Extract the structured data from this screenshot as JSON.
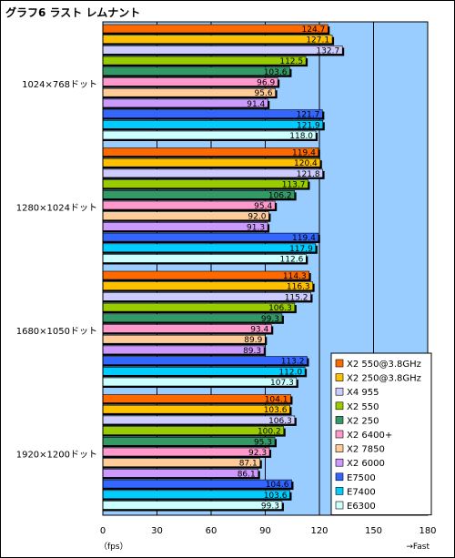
{
  "chart_data": {
    "type": "bar",
    "orientation": "horizontal",
    "title": "グラフ6 ラスト レムナント",
    "categories": [
      "1024×768ドット",
      "1280×1024ドット",
      "1680×1050ドット",
      "1920×1200ドット"
    ],
    "series": [
      {
        "name": "X2 550@3.8GHz",
        "color": "#ff6a00",
        "values": [
          124.7,
          119.4,
          114.3,
          104.1
        ]
      },
      {
        "name": "X2 250@3.8GHz",
        "color": "#ffc000",
        "values": [
          127.1,
          120.4,
          116.3,
          103.6
        ]
      },
      {
        "name": "X4 955",
        "color": "#ccccff",
        "values": [
          132.7,
          121.8,
          115.2,
          106.3
        ]
      },
      {
        "name": "X2 550",
        "color": "#99cc00",
        "values": [
          112.5,
          113.7,
          106.3,
          100.2
        ]
      },
      {
        "name": "X2 250",
        "color": "#339966",
        "values": [
          103.6,
          106.2,
          99.3,
          95.3
        ]
      },
      {
        "name": "X2 6400+",
        "color": "#ff99cc",
        "values": [
          96.9,
          95.4,
          93.4,
          92.3
        ]
      },
      {
        "name": "X2 7850",
        "color": "#ffcc99",
        "values": [
          95.6,
          92.0,
          89.9,
          87.1
        ]
      },
      {
        "name": "X2 6000",
        "color": "#cc99ff",
        "values": [
          91.4,
          91.3,
          89.3,
          86.1
        ]
      },
      {
        "name": "E7500",
        "color": "#3366ff",
        "values": [
          121.7,
          119.4,
          113.2,
          104.6
        ]
      },
      {
        "name": "E7400",
        "color": "#00ccff",
        "values": [
          121.9,
          117.9,
          112.0,
          103.6
        ]
      },
      {
        "name": "E6300",
        "color": "#ccffff",
        "values": [
          118.0,
          112.6,
          107.3,
          99.3
        ]
      }
    ],
    "xlim": [
      0,
      180
    ],
    "xticks": [
      0,
      30,
      60,
      90,
      120,
      150,
      180
    ],
    "xunit": "（fps）",
    "direction_label": "→Fast",
    "legend_position": "bottom-right",
    "plot_background": "#99ccff",
    "grid": true
  }
}
